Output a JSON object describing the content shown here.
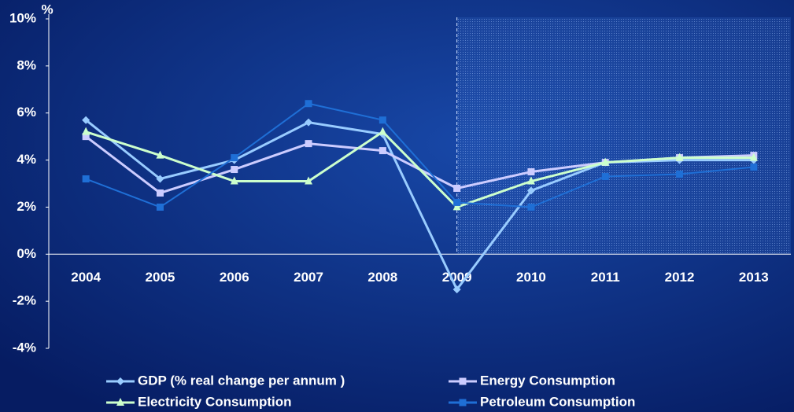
{
  "chart_data": {
    "type": "line",
    "y_unit": "%",
    "categories": [
      "2004",
      "2005",
      "2006",
      "2007",
      "2008",
      "2009",
      "2010",
      "2011",
      "2012",
      "2013"
    ],
    "forecast_from": "2009",
    "series": [
      {
        "name": "GDP (% real change per annum )",
        "color": "#99ccff",
        "marker": "diamond",
        "values": [
          5.7,
          3.2,
          4.0,
          5.6,
          5.1,
          -1.5,
          2.7,
          3.9,
          4.0,
          4.0
        ]
      },
      {
        "name": "Energy Consumption",
        "color": "#ccccff",
        "marker": "square",
        "values": [
          5.0,
          2.6,
          3.6,
          4.7,
          4.4,
          2.8,
          3.5,
          3.9,
          4.1,
          4.2
        ]
      },
      {
        "name": "Electricity Consumption",
        "color": "#ccffcc",
        "marker": "triangle",
        "values": [
          5.2,
          4.2,
          3.1,
          3.1,
          5.2,
          2.0,
          3.1,
          3.9,
          4.1,
          4.1
        ]
      },
      {
        "name": "Petroleum Consumption",
        "color": "#1f6fd6",
        "marker": "square",
        "values": [
          3.2,
          2.0,
          4.1,
          6.4,
          5.7,
          2.2,
          2.0,
          3.3,
          3.4,
          3.7
        ]
      }
    ],
    "ylim": [
      -4,
      10
    ],
    "yticks": [
      {
        "value": -4,
        "label": "-4%"
      },
      {
        "value": -2,
        "label": "-2%"
      },
      {
        "value": 0,
        "label": "0%"
      },
      {
        "value": 2,
        "label": "2%"
      },
      {
        "value": 4,
        "label": "4%"
      },
      {
        "value": 6,
        "label": "6%"
      },
      {
        "value": 8,
        "label": "8%"
      },
      {
        "value": 10,
        "label": "10%"
      }
    ]
  }
}
